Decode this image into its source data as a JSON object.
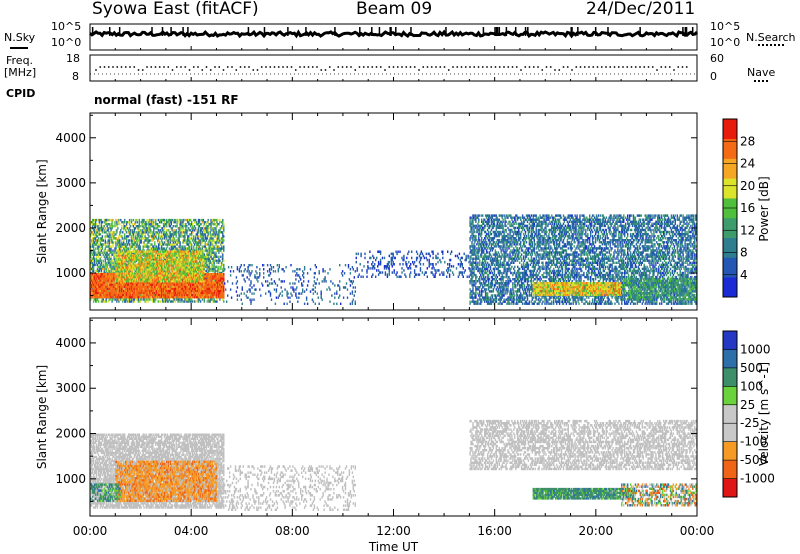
{
  "header": {
    "station": "Syowa East (fitACF)",
    "beam": "Beam 09",
    "date": "24/Dec/2011"
  },
  "status_panel": {
    "left_labels": {
      "nsky": "N.Sky",
      "freq": "Freq.",
      "freq_unit": "[MHz]",
      "cpid": "CPID"
    },
    "right_labels": {
      "nsearch": "N.Search",
      "nave": "Nave"
    },
    "noise_ticks_left": [
      "10^5",
      "10^0"
    ],
    "noise_ticks_right": [
      "10^5",
      "10^0"
    ],
    "freq_ticks": [
      "18",
      "8"
    ],
    "nave_ticks": [
      "60",
      "0"
    ],
    "cpid_text": "normal (fast) -151 RF"
  },
  "colors": {
    "power_scale": [
      "#1a2bd6",
      "#2457b3",
      "#2e7e8f",
      "#3e9b6b",
      "#4fbf3c",
      "#dbe32a",
      "#f5a623",
      "#f56a14",
      "#e81c0c"
    ],
    "velocity_scale": [
      "#e01515",
      "#f06418",
      "#f59a25",
      "#c8c8c8",
      "#c8c8c8",
      "#6ad23c",
      "#3d8f6a",
      "#2d6fa8",
      "#2438c4"
    ],
    "ground_scatter": "#c0c0c0"
  },
  "chart_data": [
    {
      "type": "heatmap",
      "panel": "power",
      "ylabel": "Slant Range [km]",
      "xlabel": "Time UT",
      "x_ticks": [
        "00:00",
        "04:00",
        "08:00",
        "12:00",
        "16:00",
        "20:00",
        "00:00"
      ],
      "x_range_hours": [
        0,
        24
      ],
      "y_ticks": [
        "1000",
        "2000",
        "3000",
        "4000"
      ],
      "y_range_km": [
        180,
        4550
      ],
      "colorbar": {
        "label": "Power [dB]",
        "range": [
          0,
          32
        ],
        "tick_values": [
          4,
          8,
          12,
          16,
          20,
          24,
          28
        ],
        "tick_labels": [
          "4",
          "8",
          "12",
          "16",
          "20",
          "24",
          "28"
        ]
      },
      "regions": [
        {
          "t": [
            0.0,
            5.3
          ],
          "r": [
            350,
            2200
          ],
          "base": 13,
          "spread": 9,
          "density": 0.6
        },
        {
          "t": [
            0.0,
            5.3
          ],
          "r": [
            450,
            1000
          ],
          "base": 27,
          "spread": 3,
          "density": 0.95
        },
        {
          "t": [
            1.0,
            4.5
          ],
          "r": [
            800,
            1500
          ],
          "base": 20,
          "spread": 6,
          "density": 0.8
        },
        {
          "t": [
            5.3,
            10.5
          ],
          "r": [
            300,
            1200
          ],
          "base": 6,
          "spread": 4,
          "density": 0.12
        },
        {
          "t": [
            10.5,
            15.0
          ],
          "r": [
            900,
            1500
          ],
          "base": 5,
          "spread": 3,
          "density": 0.18
        },
        {
          "t": [
            15.0,
            24.0
          ],
          "r": [
            300,
            2300
          ],
          "base": 8,
          "spread": 5,
          "density": 0.55
        },
        {
          "t": [
            17.5,
            21.0
          ],
          "r": [
            500,
            800
          ],
          "base": 21,
          "spread": 5,
          "density": 0.9
        },
        {
          "t": [
            21.0,
            24.0
          ],
          "r": [
            400,
            900
          ],
          "base": 12,
          "spread": 5,
          "density": 0.6
        }
      ]
    },
    {
      "type": "heatmap",
      "panel": "velocity",
      "ylabel": "Slant Range [km]",
      "xlabel": "Time UT",
      "x_ticks": [
        "00:00",
        "04:00",
        "08:00",
        "12:00",
        "16:00",
        "20:00",
        "00:00"
      ],
      "x_range_hours": [
        0,
        24
      ],
      "y_ticks": [
        "1000",
        "2000",
        "3000",
        "4000"
      ],
      "y_range_km": [
        180,
        4550
      ],
      "colorbar": {
        "label": "Velocity [m s^-1]",
        "tick_values": [
          -1000,
          -500,
          -100,
          -25,
          25,
          100,
          500,
          1000
        ],
        "tick_labels": [
          "-1000",
          "-500",
          "-100",
          "-25",
          "25",
          "100",
          "500",
          "1000"
        ]
      },
      "regions": [
        {
          "t": [
            0.0,
            5.3
          ],
          "r": [
            350,
            2000
          ],
          "mode": "ground",
          "density": 0.7
        },
        {
          "t": [
            1.0,
            5.0
          ],
          "r": [
            500,
            1400
          ],
          "mode": "neg",
          "density": 0.75
        },
        {
          "t": [
            0.0,
            1.2
          ],
          "r": [
            500,
            900
          ],
          "mode": "pos",
          "density": 0.5
        },
        {
          "t": [
            5.3,
            10.5
          ],
          "r": [
            300,
            1300
          ],
          "mode": "ground",
          "density": 0.2
        },
        {
          "t": [
            15.0,
            24.0
          ],
          "r": [
            1200,
            2300
          ],
          "mode": "ground",
          "density": 0.5
        },
        {
          "t": [
            17.5,
            21.5
          ],
          "r": [
            550,
            800
          ],
          "mode": "pos",
          "density": 0.9
        },
        {
          "t": [
            21.0,
            24.0
          ],
          "r": [
            400,
            900
          ],
          "mode": "mixed",
          "density": 0.5
        }
      ]
    }
  ]
}
